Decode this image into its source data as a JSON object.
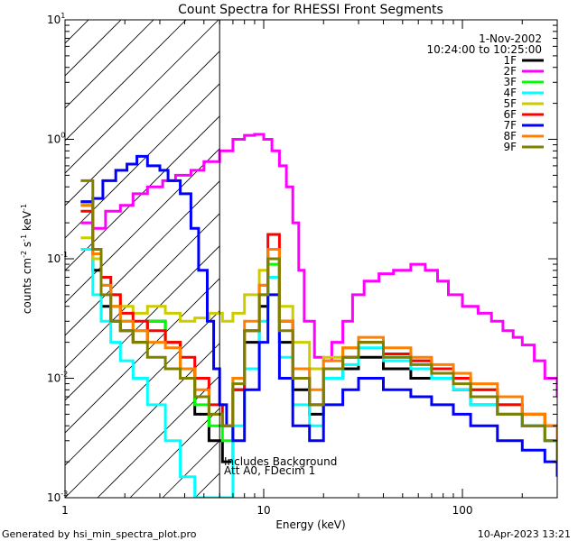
{
  "chart_data": {
    "type": "line",
    "title": "Count Spectra for RHESSI Front Segments",
    "xlabel": "Energy (keV)",
    "ylabel_parts": {
      "a": "counts cm",
      "b": "-2",
      "c": " s",
      "d": "-1",
      "e": " keV",
      "f": "-1"
    },
    "x_scale": "log",
    "y_scale": "log",
    "xlim": [
      1,
      300
    ],
    "ylim": [
      0.001,
      10
    ],
    "x_ticks": [
      {
        "value": 1,
        "label": "1"
      },
      {
        "value": 10,
        "label": "10"
      },
      {
        "value": 100,
        "label": "100"
      }
    ],
    "y_ticks": [
      {
        "value": 0.001,
        "base": "10",
        "exp": "-3"
      },
      {
        "value": 0.01,
        "base": "10",
        "exp": "-2"
      },
      {
        "value": 0.1,
        "base": "10",
        "exp": "-1"
      },
      {
        "value": 1,
        "base": "10",
        "exp": "0"
      },
      {
        "value": 10,
        "base": "10",
        "exp": "1"
      }
    ],
    "hatched_region_energy": [
      1,
      6
    ],
    "info": {
      "date": "1-Nov-2002",
      "time_range": "10:24:00 to 10:25:00",
      "annotation_line1": "Includes Background",
      "annotation_line2": "Att A0, FDecim 1"
    },
    "series": [
      {
        "name": "1F",
        "color": "#000000",
        "points": [
          [
            1.2,
            0.3
          ],
          [
            1.38,
            0.08
          ],
          [
            1.52,
            0.04
          ],
          [
            1.7,
            0.03
          ],
          [
            1.9,
            0.025
          ],
          [
            2.2,
            0.02
          ],
          [
            2.6,
            0.03
          ],
          [
            3.2,
            0.02
          ],
          [
            3.8,
            0.012
          ],
          [
            4.5,
            0.005
          ],
          [
            5.3,
            0.003
          ],
          [
            6.2,
            0.002
          ],
          [
            7,
            0.008
          ],
          [
            8,
            0.02
          ],
          [
            9.5,
            0.04
          ],
          [
            10.5,
            0.1
          ],
          [
            12,
            0.02
          ],
          [
            14,
            0.008
          ],
          [
            17,
            0.005
          ],
          [
            20,
            0.01
          ],
          [
            25,
            0.012
          ],
          [
            30,
            0.015
          ],
          [
            40,
            0.012
          ],
          [
            55,
            0.01
          ],
          [
            70,
            0.01
          ],
          [
            90,
            0.008
          ],
          [
            110,
            0.006
          ],
          [
            150,
            0.005
          ],
          [
            200,
            0.004
          ],
          [
            260,
            0.003
          ],
          [
            300,
            0.002
          ]
        ]
      },
      {
        "name": "2F",
        "color": "#ff00ff",
        "points": [
          [
            1.2,
            0.2
          ],
          [
            1.38,
            0.18
          ],
          [
            1.6,
            0.25
          ],
          [
            1.9,
            0.28
          ],
          [
            2.2,
            0.35
          ],
          [
            2.6,
            0.4
          ],
          [
            3.1,
            0.45
          ],
          [
            3.6,
            0.5
          ],
          [
            4.3,
            0.55
          ],
          [
            5,
            0.65
          ],
          [
            6,
            0.8
          ],
          [
            7,
            1.0
          ],
          [
            8,
            1.08
          ],
          [
            9,
            1.1
          ],
          [
            10,
            1.0
          ],
          [
            11,
            0.8
          ],
          [
            12,
            0.6
          ],
          [
            13,
            0.4
          ],
          [
            14,
            0.2
          ],
          [
            15,
            0.08
          ],
          [
            16,
            0.03
          ],
          [
            18,
            0.015
          ],
          [
            20,
            0.014
          ],
          [
            22,
            0.02
          ],
          [
            25,
            0.03
          ],
          [
            28,
            0.05
          ],
          [
            32,
            0.065
          ],
          [
            38,
            0.075
          ],
          [
            45,
            0.08
          ],
          [
            55,
            0.09
          ],
          [
            65,
            0.08
          ],
          [
            75,
            0.065
          ],
          [
            85,
            0.05
          ],
          [
            100,
            0.04
          ],
          [
            120,
            0.035
          ],
          [
            140,
            0.03
          ],
          [
            160,
            0.025
          ],
          [
            180,
            0.022
          ],
          [
            200,
            0.019
          ],
          [
            230,
            0.014
          ],
          [
            260,
            0.01
          ],
          [
            300,
            0.007
          ]
        ]
      },
      {
        "name": "3F",
        "color": "#00ff00",
        "points": [
          [
            1.2,
            0.28
          ],
          [
            1.38,
            0.1
          ],
          [
            1.52,
            0.06
          ],
          [
            1.7,
            0.04
          ],
          [
            1.9,
            0.03
          ],
          [
            2.2,
            0.025
          ],
          [
            2.6,
            0.03
          ],
          [
            3.2,
            0.02
          ],
          [
            3.8,
            0.012
          ],
          [
            4.5,
            0.006
          ],
          [
            5.3,
            0.004
          ],
          [
            6.2,
            0.003
          ],
          [
            7,
            0.01
          ],
          [
            8,
            0.025
          ],
          [
            9.5,
            0.05
          ],
          [
            10.5,
            0.09
          ],
          [
            12,
            0.03
          ],
          [
            14,
            0.012
          ],
          [
            17,
            0.006
          ],
          [
            20,
            0.012
          ],
          [
            25,
            0.015
          ],
          [
            30,
            0.02
          ],
          [
            40,
            0.015
          ],
          [
            55,
            0.014
          ],
          [
            70,
            0.012
          ],
          [
            90,
            0.01
          ],
          [
            110,
            0.008
          ],
          [
            150,
            0.006
          ],
          [
            200,
            0.005
          ],
          [
            260,
            0.004
          ],
          [
            300,
            0.003
          ]
        ]
      },
      {
        "name": "4F",
        "color": "#00ffff",
        "points": [
          [
            1.2,
            0.12
          ],
          [
            1.38,
            0.05
          ],
          [
            1.52,
            0.03
          ],
          [
            1.7,
            0.02
          ],
          [
            1.9,
            0.014
          ],
          [
            2.2,
            0.01
          ],
          [
            2.6,
            0.006
          ],
          [
            3.2,
            0.003
          ],
          [
            3.8,
            0.0015
          ],
          [
            4.5,
            0.001
          ],
          [
            6,
            0.001
          ],
          [
            7,
            0.004
          ],
          [
            8,
            0.012
          ],
          [
            9.5,
            0.03
          ],
          [
            10.5,
            0.07
          ],
          [
            12,
            0.015
          ],
          [
            14,
            0.006
          ],
          [
            17,
            0.004
          ],
          [
            20,
            0.01
          ],
          [
            25,
            0.013
          ],
          [
            30,
            0.018
          ],
          [
            40,
            0.014
          ],
          [
            55,
            0.012
          ],
          [
            70,
            0.01
          ],
          [
            90,
            0.008
          ],
          [
            110,
            0.006
          ],
          [
            150,
            0.005
          ],
          [
            200,
            0.004
          ],
          [
            260,
            0.003
          ],
          [
            300,
            0.002
          ]
        ]
      },
      {
        "name": "5F",
        "color": "#cccc00",
        "points": [
          [
            1.2,
            0.15
          ],
          [
            1.38,
            0.1
          ],
          [
            1.52,
            0.07
          ],
          [
            1.7,
            0.05
          ],
          [
            1.9,
            0.04
          ],
          [
            2.2,
            0.035
          ],
          [
            2.6,
            0.04
          ],
          [
            3.2,
            0.035
          ],
          [
            3.8,
            0.03
          ],
          [
            4.5,
            0.032
          ],
          [
            5.3,
            0.035
          ],
          [
            6.2,
            0.03
          ],
          [
            7,
            0.035
          ],
          [
            8,
            0.05
          ],
          [
            9.5,
            0.08
          ],
          [
            10.5,
            0.12
          ],
          [
            12,
            0.04
          ],
          [
            14,
            0.02
          ],
          [
            17,
            0.012
          ],
          [
            20,
            0.015
          ],
          [
            25,
            0.018
          ],
          [
            30,
            0.02
          ],
          [
            40,
            0.016
          ],
          [
            55,
            0.014
          ],
          [
            70,
            0.012
          ],
          [
            90,
            0.01
          ],
          [
            110,
            0.008
          ],
          [
            150,
            0.006
          ],
          [
            200,
            0.005
          ],
          [
            260,
            0.004
          ],
          [
            300,
            0.003
          ]
        ]
      },
      {
        "name": "6F",
        "color": "#ff0000",
        "points": [
          [
            1.2,
            0.25
          ],
          [
            1.38,
            0.12
          ],
          [
            1.52,
            0.07
          ],
          [
            1.7,
            0.05
          ],
          [
            1.9,
            0.035
          ],
          [
            2.2,
            0.03
          ],
          [
            2.6,
            0.025
          ],
          [
            3.2,
            0.02
          ],
          [
            3.8,
            0.015
          ],
          [
            4.5,
            0.01
          ],
          [
            5.3,
            0.006
          ],
          [
            6.2,
            0.004
          ],
          [
            7,
            0.008
          ],
          [
            8,
            0.025
          ],
          [
            9.5,
            0.06
          ],
          [
            10.5,
            0.16
          ],
          [
            12,
            0.03
          ],
          [
            14,
            0.01
          ],
          [
            17,
            0.006
          ],
          [
            20,
            0.012
          ],
          [
            25,
            0.015
          ],
          [
            30,
            0.02
          ],
          [
            40,
            0.016
          ],
          [
            55,
            0.014
          ],
          [
            70,
            0.012
          ],
          [
            90,
            0.01
          ],
          [
            110,
            0.008
          ],
          [
            150,
            0.006
          ],
          [
            200,
            0.005
          ],
          [
            260,
            0.004
          ],
          [
            300,
            0.003
          ]
        ]
      },
      {
        "name": "7F",
        "color": "#0000ff",
        "points": [
          [
            1.2,
            0.3
          ],
          [
            1.38,
            0.32
          ],
          [
            1.55,
            0.45
          ],
          [
            1.8,
            0.55
          ],
          [
            2.05,
            0.62
          ],
          [
            2.3,
            0.72
          ],
          [
            2.6,
            0.6
          ],
          [
            3,
            0.55
          ],
          [
            3.3,
            0.45
          ],
          [
            3.8,
            0.35
          ],
          [
            4.3,
            0.18
          ],
          [
            4.7,
            0.08
          ],
          [
            5.2,
            0.03
          ],
          [
            5.6,
            0.012
          ],
          [
            6,
            0.006
          ],
          [
            6.5,
            0.004
          ],
          [
            7,
            0.003
          ],
          [
            8,
            0.008
          ],
          [
            9.5,
            0.02
          ],
          [
            10.5,
            0.05
          ],
          [
            12,
            0.01
          ],
          [
            14,
            0.004
          ],
          [
            17,
            0.003
          ],
          [
            20,
            0.006
          ],
          [
            25,
            0.008
          ],
          [
            30,
            0.01
          ],
          [
            40,
            0.008
          ],
          [
            55,
            0.007
          ],
          [
            70,
            0.006
          ],
          [
            90,
            0.005
          ],
          [
            110,
            0.004
          ],
          [
            150,
            0.003
          ],
          [
            200,
            0.0025
          ],
          [
            260,
            0.002
          ],
          [
            300,
            0.0015
          ]
        ]
      },
      {
        "name": "8F",
        "color": "#ff8000",
        "points": [
          [
            1.2,
            0.28
          ],
          [
            1.38,
            0.11
          ],
          [
            1.52,
            0.06
          ],
          [
            1.7,
            0.04
          ],
          [
            1.9,
            0.03
          ],
          [
            2.2,
            0.025
          ],
          [
            2.6,
            0.02
          ],
          [
            3.2,
            0.018
          ],
          [
            3.8,
            0.012
          ],
          [
            4.5,
            0.008
          ],
          [
            5.3,
            0.005
          ],
          [
            6.2,
            0.004
          ],
          [
            7,
            0.01
          ],
          [
            8,
            0.03
          ],
          [
            9.5,
            0.06
          ],
          [
            10.5,
            0.12
          ],
          [
            12,
            0.03
          ],
          [
            14,
            0.012
          ],
          [
            17,
            0.008
          ],
          [
            20,
            0.014
          ],
          [
            25,
            0.018
          ],
          [
            30,
            0.022
          ],
          [
            40,
            0.018
          ],
          [
            55,
            0.015
          ],
          [
            70,
            0.013
          ],
          [
            90,
            0.011
          ],
          [
            110,
            0.009
          ],
          [
            150,
            0.007
          ],
          [
            200,
            0.005
          ],
          [
            260,
            0.004
          ],
          [
            300,
            0.003
          ]
        ]
      },
      {
        "name": "9F",
        "color": "#808000",
        "points": [
          [
            1.2,
            0.45
          ],
          [
            1.38,
            0.12
          ],
          [
            1.52,
            0.05
          ],
          [
            1.7,
            0.03
          ],
          [
            1.9,
            0.025
          ],
          [
            2.2,
            0.02
          ],
          [
            2.6,
            0.015
          ],
          [
            3.2,
            0.012
          ],
          [
            3.8,
            0.01
          ],
          [
            4.5,
            0.007
          ],
          [
            5.3,
            0.005
          ],
          [
            6.2,
            0.004
          ],
          [
            7,
            0.009
          ],
          [
            8,
            0.025
          ],
          [
            9.5,
            0.05
          ],
          [
            10.5,
            0.1
          ],
          [
            12,
            0.025
          ],
          [
            14,
            0.01
          ],
          [
            17,
            0.006
          ],
          [
            20,
            0.012
          ],
          [
            25,
            0.015
          ],
          [
            30,
            0.02
          ],
          [
            40,
            0.015
          ],
          [
            55,
            0.013
          ],
          [
            70,
            0.011
          ],
          [
            90,
            0.009
          ],
          [
            110,
            0.007
          ],
          [
            150,
            0.005
          ],
          [
            200,
            0.004
          ],
          [
            260,
            0.003
          ],
          [
            300,
            0.002
          ]
        ]
      }
    ]
  },
  "footer": {
    "generated_by": "Generated by hsi_min_spectra_plot.pro",
    "timestamp": "10-Apr-2023 13:21"
  }
}
